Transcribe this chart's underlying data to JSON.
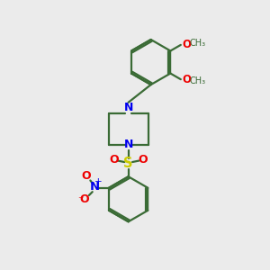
{
  "bg_color": "#ebebeb",
  "bond_color": "#3a6b35",
  "bond_width": 1.6,
  "atom_colors": {
    "N": "#0000ee",
    "O": "#ee0000",
    "S": "#cccc00",
    "C": "#3a6b35"
  },
  "font_size": 8.5,
  "fig_size": [
    3.0,
    3.0
  ],
  "dpi": 100
}
